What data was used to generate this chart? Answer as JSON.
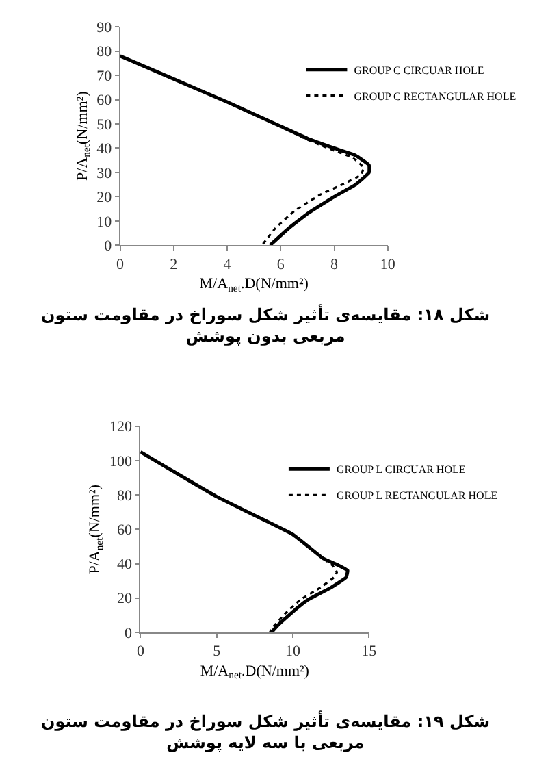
{
  "chart_data": [
    {
      "type": "line",
      "xlabel": "M/A$_{net}$.D(N/mm²)",
      "ylabel": "P/A$_{net}$(N/mm²)",
      "xlim": [
        0,
        10
      ],
      "xticks": [
        0,
        2,
        4,
        6,
        8,
        10
      ],
      "ylim": [
        0,
        90
      ],
      "yticks": [
        0,
        10,
        20,
        30,
        40,
        50,
        60,
        70,
        80,
        90
      ],
      "legend": "top right",
      "annotations": [
        "شکل ۱۸: مقایسه‌ی تأثیر شکل سوراخ در مقاومت ستون مربعی بدون پوشش"
      ],
      "series": [
        {
          "name": "GROUP C CIRCUAR HOLE",
          "color": "#000000",
          "line_style": "solid",
          "x": [
            0,
            2,
            4,
            6,
            7,
            8,
            8.8,
            9.3,
            9.3,
            8.8,
            8,
            7,
            6.3,
            5.6
          ],
          "values": [
            78,
            68.5,
            59,
            49,
            44,
            40,
            37,
            33,
            30,
            25,
            20,
            13,
            7,
            0
          ]
        },
        {
          "name": "GROUP C RECTANGULAR HOLE",
          "color": "#000000",
          "line_style": "dotted",
          "x": [
            0,
            2,
            4,
            6,
            7,
            8,
            8.7,
            9.1,
            9,
            8.3,
            7.5,
            6.5,
            5.8,
            5.3
          ],
          "values": [
            78,
            68.5,
            59,
            49,
            43.5,
            39,
            36,
            32,
            29,
            25,
            21,
            14,
            7,
            0
          ]
        }
      ]
    },
    {
      "type": "line",
      "xlabel": "M/A$_{net}$.D(N/mm²)",
      "ylabel": "P/A$_{net}$(N/mm²)",
      "xlim": [
        0,
        15
      ],
      "xticks": [
        0,
        5,
        10,
        15
      ],
      "ylim": [
        0,
        120
      ],
      "yticks": [
        0,
        20,
        40,
        60,
        80,
        100,
        120
      ],
      "legend": "top right",
      "annotations": [
        "شکل ۱۹: مقایسه‌ی تأثیر شکل سوراخ در مقاومت ستون مربعی با سه لایه پوشش"
      ],
      "series": [
        {
          "name": "GROUP L CIRCUAR HOLE",
          "color": "#000000",
          "line_style": "solid",
          "x": [
            0,
            5,
            10,
            12,
            13,
            13.6,
            13.5,
            12.5,
            11,
            10,
            9,
            8.6
          ],
          "values": [
            105,
            79,
            57,
            43,
            39,
            36,
            32,
            26,
            19,
            12,
            4,
            0
          ]
        },
        {
          "name": "GROUP L RECTANGULAR HOLE",
          "color": "#000000",
          "line_style": "dotted",
          "x": [
            0,
            5,
            10,
            12,
            12.6,
            12.9,
            12.7,
            11.8,
            10.5,
            9.5,
            8.6,
            8.5
          ],
          "values": [
            105,
            79,
            57,
            43,
            39,
            35,
            32,
            26,
            19,
            11,
            2,
            0
          ]
        }
      ]
    }
  ]
}
